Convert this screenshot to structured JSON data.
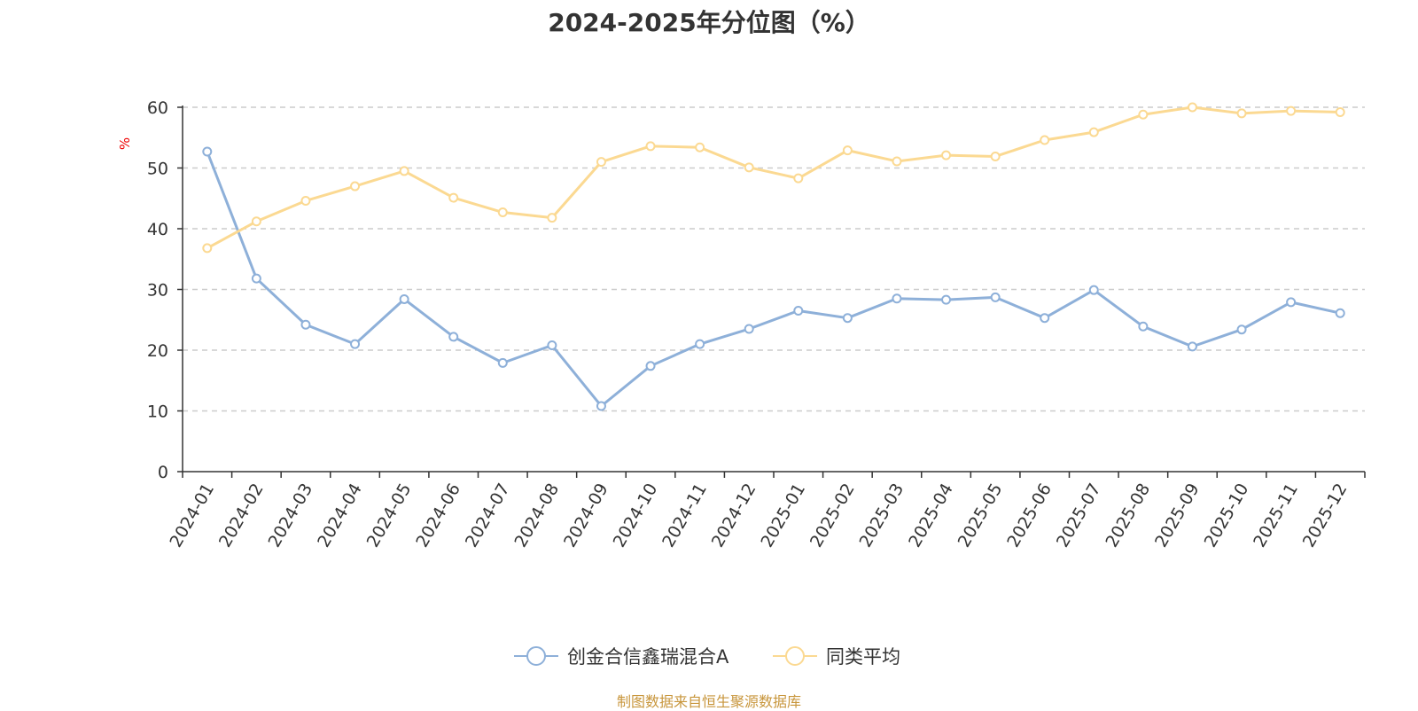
{
  "chart_data": {
    "type": "line",
    "title": "2024-2025年分位图（%）",
    "ylabel": "%",
    "xlabel": "",
    "ylim": [
      0,
      60
    ],
    "yticks": [
      0,
      10,
      20,
      30,
      40,
      50,
      60
    ],
    "grid": true,
    "legend_position": "bottom-center",
    "categories": [
      "2024-01",
      "2024-02",
      "2024-03",
      "2024-04",
      "2024-05",
      "2024-06",
      "2024-07",
      "2024-08",
      "2024-09",
      "2024-10",
      "2024-11",
      "2024-12",
      "2025-01",
      "2025-02",
      "2025-03",
      "2025-04",
      "2025-05",
      "2025-06",
      "2025-07",
      "2025-08",
      "2025-09",
      "2025-10",
      "2025-11",
      "2025-12"
    ],
    "series": [
      {
        "name": "创金合信鑫瑞混合A",
        "color": "#8eb0d9",
        "values": [
          52.7,
          31.8,
          24.2,
          21.0,
          28.4,
          22.2,
          17.9,
          20.8,
          10.8,
          17.4,
          21.0,
          23.5,
          26.5,
          25.3,
          28.5,
          28.3,
          28.7,
          25.3,
          29.9,
          23.9,
          20.6,
          23.4,
          27.9,
          26.1
        ]
      },
      {
        "name": "同类平均",
        "color": "#fbd992",
        "values": [
          36.8,
          41.2,
          44.6,
          47.0,
          49.5,
          45.1,
          42.7,
          41.8,
          51.0,
          53.6,
          53.4,
          50.1,
          48.3,
          52.9,
          51.1,
          52.1,
          51.9,
          54.6,
          55.9,
          58.8,
          60.0,
          59.0,
          59.4,
          59.2
        ]
      }
    ]
  },
  "footer": {
    "source": "制图数据来自恒生聚源数据库"
  }
}
